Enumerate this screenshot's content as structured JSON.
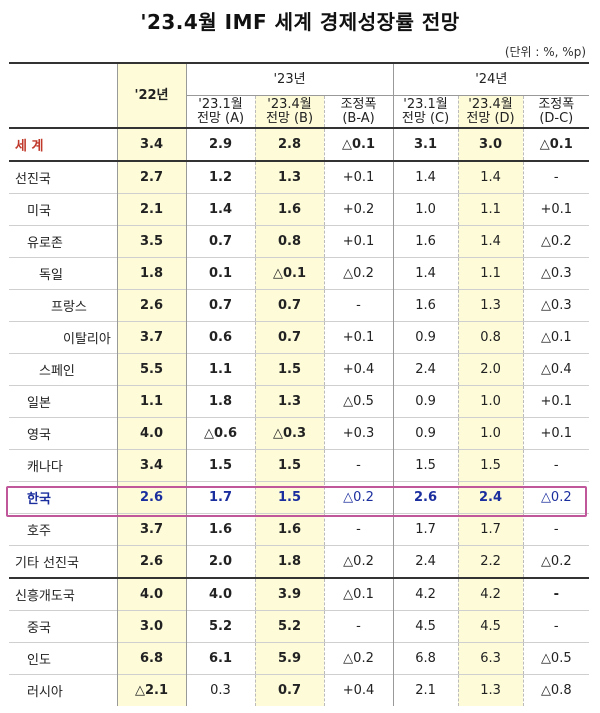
{
  "title": "'23.4월 IMF 세계 경제성장률 전망",
  "unit": "(단위 : %, %p)",
  "header": {
    "y22": "'22년",
    "y23": "'23년",
    "y24": "'24년",
    "jan23": "'23.1월",
    "apr23": "'23.4월",
    "forecast_a": "전망 (A)",
    "forecast_b": "전망 (B)",
    "forecast_c": "전망 (C)",
    "forecast_d": "전망 (D)",
    "adj": "조정폭",
    "ba": "(B-A)",
    "dc": "(D-C)"
  },
  "rows": [
    {
      "name": "세  계",
      "y22": "3.4",
      "a": "2.9",
      "b": "2.8",
      "ba": "△0.1",
      "c": "3.1",
      "d": "3.0",
      "dc": "△0.1"
    },
    {
      "name": "선진국",
      "y22": "2.7",
      "a": "1.2",
      "b": "1.3",
      "ba": "+0.1",
      "c": "1.4",
      "d": "1.4",
      "dc": "-"
    },
    {
      "name": "미국",
      "y22": "2.1",
      "a": "1.4",
      "b": "1.6",
      "ba": "+0.2",
      "c": "1.0",
      "d": "1.1",
      "dc": "+0.1"
    },
    {
      "name": "유로존",
      "y22": "3.5",
      "a": "0.7",
      "b": "0.8",
      "ba": "+0.1",
      "c": "1.6",
      "d": "1.4",
      "dc": "△0.2"
    },
    {
      "name": "독일",
      "y22": "1.8",
      "a": "0.1",
      "b": "△0.1",
      "ba": "△0.2",
      "c": "1.4",
      "d": "1.1",
      "dc": "△0.3"
    },
    {
      "name": "프랑스",
      "y22": "2.6",
      "a": "0.7",
      "b": "0.7",
      "ba": "-",
      "c": "1.6",
      "d": "1.3",
      "dc": "△0.3"
    },
    {
      "name": "이탈리아",
      "y22": "3.7",
      "a": "0.6",
      "b": "0.7",
      "ba": "+0.1",
      "c": "0.9",
      "d": "0.8",
      "dc": "△0.1"
    },
    {
      "name": "스페인",
      "y22": "5.5",
      "a": "1.1",
      "b": "1.5",
      "ba": "+0.4",
      "c": "2.4",
      "d": "2.0",
      "dc": "△0.4"
    },
    {
      "name": "일본",
      "y22": "1.1",
      "a": "1.8",
      "b": "1.3",
      "ba": "△0.5",
      "c": "0.9",
      "d": "1.0",
      "dc": "+0.1"
    },
    {
      "name": "영국",
      "y22": "4.0",
      "a": "△0.6",
      "b": "△0.3",
      "ba": "+0.3",
      "c": "0.9",
      "d": "1.0",
      "dc": "+0.1"
    },
    {
      "name": "캐나다",
      "y22": "3.4",
      "a": "1.5",
      "b": "1.5",
      "ba": "-",
      "c": "1.5",
      "d": "1.5",
      "dc": "-"
    },
    {
      "name": "한국",
      "y22": "2.6",
      "a": "1.7",
      "b": "1.5",
      "ba": "△0.2",
      "c": "2.6",
      "d": "2.4",
      "dc": "△0.2"
    },
    {
      "name": "호주",
      "y22": "3.7",
      "a": "1.6",
      "b": "1.6",
      "ba": "-",
      "c": "1.7",
      "d": "1.7",
      "dc": "-"
    },
    {
      "name": "기타 선진국",
      "y22": "2.6",
      "a": "2.0",
      "b": "1.8",
      "ba": "△0.2",
      "c": "2.4",
      "d": "2.2",
      "dc": "△0.2"
    },
    {
      "name": "신흥개도국",
      "y22": "4.0",
      "a": "4.0",
      "b": "3.9",
      "ba": "△0.1",
      "c": "4.2",
      "d": "4.2",
      "dc": "-"
    },
    {
      "name": "중국",
      "y22": "3.0",
      "a": "5.2",
      "b": "5.2",
      "ba": "-",
      "c": "4.5",
      "d": "4.5",
      "dc": "-"
    },
    {
      "name": "인도",
      "y22": "6.8",
      "a": "6.1",
      "b": "5.9",
      "ba": "△0.2",
      "c": "6.8",
      "d": "6.3",
      "dc": "△0.5"
    },
    {
      "name": "러시아",
      "y22": "△2.1",
      "a": "0.3",
      "b": "0.7",
      "ba": "+0.4",
      "c": "2.1",
      "d": "1.3",
      "dc": "△0.8"
    }
  ]
}
